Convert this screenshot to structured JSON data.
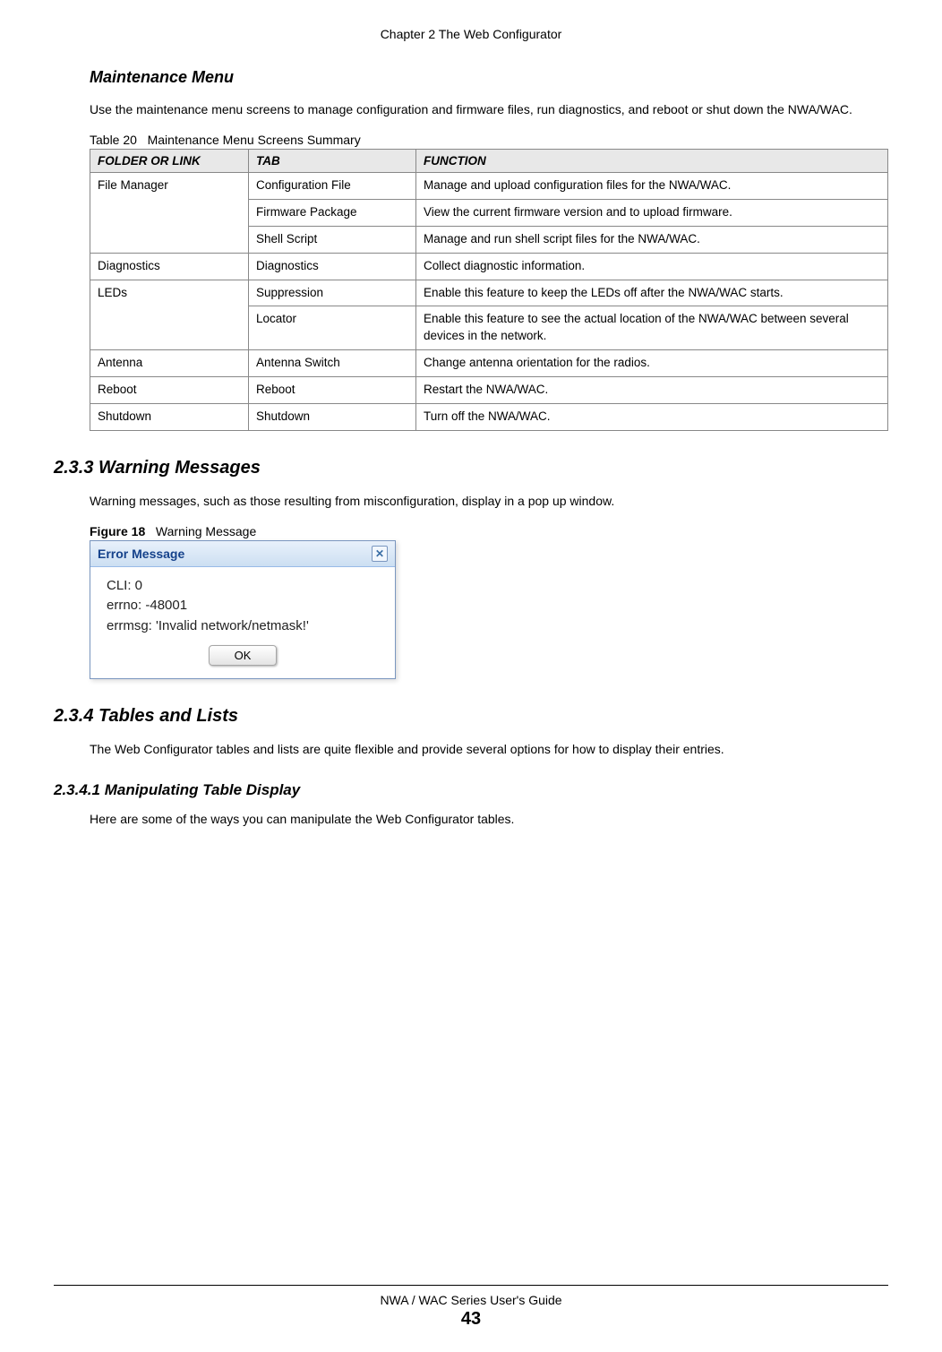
{
  "header": {
    "chapter": "Chapter 2 The Web Configurator"
  },
  "section_maintenance": {
    "title": "Maintenance Menu",
    "intro": "Use the maintenance menu screens to manage configuration and firmware files, run diagnostics, and reboot or shut down the NWA/WAC."
  },
  "table20": {
    "caption_prefix": "Table 20",
    "caption_text": "Maintenance Menu Screens Summary",
    "headers": {
      "col1": "FOLDER OR LINK",
      "col2": "TAB",
      "col3": "FUNCTION"
    },
    "rows": {
      "r1": {
        "folder": "File Manager",
        "tab": "Configuration File",
        "func": "Manage and upload configuration files for the NWA/WAC."
      },
      "r2": {
        "tab": "Firmware Package",
        "func": "View the current firmware version and to upload firmware."
      },
      "r3": {
        "tab": "Shell Script",
        "func": "Manage and run shell script files for the NWA/WAC."
      },
      "r4": {
        "folder": "Diagnostics",
        "tab": "Diagnostics",
        "func": "Collect diagnostic information."
      },
      "r5": {
        "folder": "LEDs",
        "tab": "Suppression",
        "func": "Enable this feature to keep the LEDs off after the NWA/WAC starts."
      },
      "r6": {
        "tab": "Locator",
        "func": "Enable this feature to see the actual location of the NWA/WAC between several devices in the network."
      },
      "r7": {
        "folder": "Antenna",
        "tab": "Antenna Switch",
        "func": "Change antenna orientation for the radios."
      },
      "r8": {
        "folder": "Reboot",
        "tab": "Reboot",
        "func": "Restart the NWA/WAC."
      },
      "r9": {
        "folder": "Shutdown",
        "tab": "Shutdown",
        "func": "Turn off the NWA/WAC."
      }
    }
  },
  "section_233": {
    "heading": "2.3.3  Warning Messages",
    "text": "Warning messages, such as those resulting from misconfiguration, display in a pop up window."
  },
  "figure18": {
    "label": "Figure 18",
    "caption": "Warning Message",
    "dialog_title": "Error Message",
    "line1": "CLI: 0",
    "line2": "errno: -48001",
    "line3": "errmsg: 'Invalid network/netmask!'",
    "ok": "OK"
  },
  "section_234": {
    "heading": "2.3.4  Tables and Lists",
    "text": "The Web Configurator tables and lists are quite flexible and provide several options for how to display their entries."
  },
  "section_2341": {
    "heading": "2.3.4.1  Manipulating Table Display",
    "text": "Here are some of the ways you can manipulate the Web Configurator tables."
  },
  "footer": {
    "guide": "NWA / WAC Series User's Guide",
    "page": "43"
  }
}
